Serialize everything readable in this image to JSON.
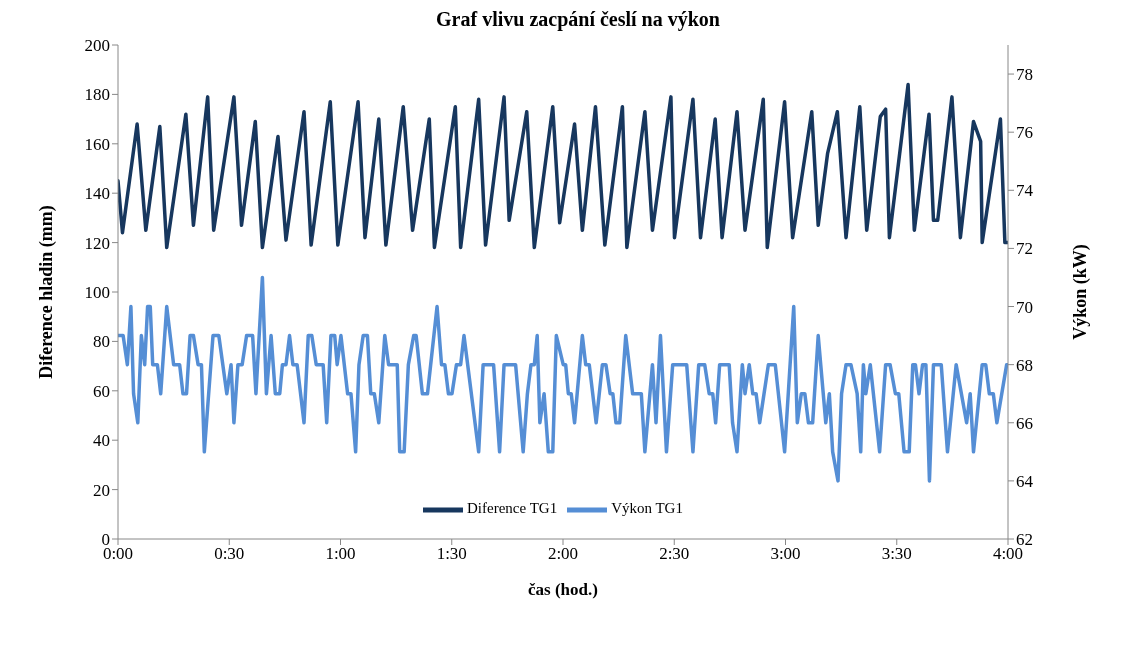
{
  "chart_data": {
    "type": "line",
    "title": "Graf vlivu zacpání česlí na výkon",
    "xlabel": "čas (hod.)",
    "ylabel": "Diference hladin (mm)",
    "y2label": "Výkon (kW)",
    "xlim": [
      0,
      4
    ],
    "xticks": [
      {
        "value": 0,
        "label": "0:00"
      },
      {
        "value": 0.5,
        "label": "0:30"
      },
      {
        "value": 1,
        "label": "1:00"
      },
      {
        "value": 1.5,
        "label": "1:30"
      },
      {
        "value": 2,
        "label": "2:00"
      },
      {
        "value": 2.5,
        "label": "2:30"
      },
      {
        "value": 3,
        "label": "3:00"
      },
      {
        "value": 3.5,
        "label": "3:30"
      },
      {
        "value": 4,
        "label": "4:00"
      }
    ],
    "ylim": [
      0,
      200
    ],
    "yticks": [
      0,
      20,
      40,
      60,
      80,
      100,
      120,
      140,
      160,
      180,
      200
    ],
    "y2lim": [
      62,
      79
    ],
    "y2ticks": [
      62,
      64,
      66,
      68,
      70,
      72,
      74,
      76,
      78
    ],
    "legend": "bottom",
    "series": [
      {
        "name": "Diference TG1",
        "color": "#17375e",
        "x": [
          0,
          0.02,
          0.086,
          0.125,
          0.188,
          0.219,
          0.305,
          0.339,
          0.403,
          0.43,
          0.521,
          0.555,
          0.617,
          0.649,
          0.719,
          0.755,
          0.836,
          0.868,
          0.954,
          0.988,
          1.079,
          1.11,
          1.172,
          1.204,
          1.282,
          1.324,
          1.399,
          1.422,
          1.516,
          1.54,
          1.621,
          1.652,
          1.735,
          1.758,
          1.837,
          1.871,
          1.954,
          1.985,
          2.052,
          2.087,
          2.146,
          2.188,
          2.267,
          2.287,
          2.368,
          2.402,
          2.485,
          2.501,
          2.584,
          2.618,
          2.684,
          2.715,
          2.782,
          2.818,
          2.9,
          2.918,
          2.996,
          3.032,
          3.118,
          3.147,
          3.189,
          3.233,
          3.272,
          3.334,
          3.365,
          3.426,
          3.45,
          3.467,
          3.551,
          3.579,
          3.645,
          3.665,
          3.684,
          3.748,
          3.786,
          3.845,
          3.877,
          3.884,
          3.966,
          3.986,
          4.0
        ],
        "values": [
          145,
          124,
          168,
          125,
          167,
          118,
          172,
          127,
          179,
          125,
          179,
          127,
          169,
          118,
          163,
          121,
          173,
          119,
          177,
          119,
          177,
          122,
          170,
          119,
          175,
          125,
          170,
          118,
          175,
          118,
          178,
          119,
          179,
          129,
          173,
          118,
          175,
          128,
          168,
          125,
          175,
          119,
          175,
          118,
          173,
          125,
          179,
          122,
          178,
          122,
          170,
          122,
          173,
          125,
          178,
          118,
          177,
          122,
          173,
          127,
          156,
          173,
          122,
          175,
          125,
          171,
          174,
          122,
          184,
          125,
          172,
          129,
          129,
          179,
          122,
          169,
          161,
          120,
          170,
          120,
          120
        ]
      },
      {
        "name": "Výkon TG1",
        "color": "#558ed5",
        "axis": "y2",
        "x": [
          0,
          0.023,
          0.042,
          0.058,
          0.07,
          0.089,
          0.105,
          0.12,
          0.133,
          0.145,
          0.156,
          0.177,
          0.192,
          0.219,
          0.25,
          0.277,
          0.292,
          0.308,
          0.324,
          0.339,
          0.36,
          0.375,
          0.388,
          0.427,
          0.453,
          0.489,
          0.508,
          0.521,
          0.539,
          0.558,
          0.578,
          0.605,
          0.62,
          0.649,
          0.667,
          0.688,
          0.707,
          0.727,
          0.739,
          0.755,
          0.771,
          0.786,
          0.805,
          0.836,
          0.855,
          0.871,
          0.891,
          0.922,
          0.938,
          0.957,
          0.974,
          0.985,
          1.002,
          1.032,
          1.047,
          1.068,
          1.083,
          1.102,
          1.121,
          1.136,
          1.152,
          1.172,
          1.199,
          1.216,
          1.255,
          1.266,
          1.286,
          1.305,
          1.329,
          1.34,
          1.368,
          1.391,
          1.434,
          1.454,
          1.469,
          1.485,
          1.501,
          1.521,
          1.54,
          1.555,
          1.621,
          1.641,
          1.688,
          1.715,
          1.735,
          1.787,
          1.821,
          1.84,
          1.856,
          1.871,
          1.884,
          1.896,
          1.915,
          1.934,
          1.954,
          1.97,
          2.001,
          2.012,
          2.024,
          2.037,
          2.052,
          2.087,
          2.102,
          2.118,
          2.149,
          2.177,
          2.193,
          2.212,
          2.224,
          2.238,
          2.255,
          2.282,
          2.313,
          2.352,
          2.368,
          2.402,
          2.418,
          2.438,
          2.465,
          2.493,
          2.506,
          2.556,
          2.584,
          2.61,
          2.637,
          2.657,
          2.673,
          2.686,
          2.704,
          2.747,
          2.762,
          2.782,
          2.806,
          2.818,
          2.837,
          2.853,
          2.868,
          2.884,
          2.923,
          2.954,
          2.996,
          3.037,
          3.053,
          3.071,
          3.087,
          3.103,
          3.122,
          3.147,
          3.181,
          3.197,
          3.212,
          3.236,
          3.252,
          3.272,
          3.294,
          3.322,
          3.338,
          3.35,
          3.361,
          3.381,
          3.423,
          3.45,
          3.47,
          3.494,
          3.509,
          3.533,
          3.556,
          3.572,
          3.584,
          3.6,
          3.616,
          3.631,
          3.647,
          3.665,
          3.7,
          3.728,
          3.767,
          3.814,
          3.83,
          3.845,
          3.884,
          3.9,
          3.916,
          3.934,
          3.95,
          3.994,
          4.0
        ],
        "values": [
          69,
          69,
          68,
          70,
          67,
          66,
          69,
          68,
          70,
          70,
          68,
          68,
          67,
          70,
          68,
          68,
          67,
          67,
          69,
          69,
          68,
          68,
          65,
          69,
          69,
          67,
          68,
          66,
          68,
          68,
          69,
          69,
          67,
          71,
          67,
          69,
          67,
          67,
          68,
          68,
          69,
          68,
          68,
          66,
          69,
          69,
          68,
          68,
          66,
          69,
          69,
          68,
          69,
          67,
          67,
          65,
          68,
          69,
          69,
          67,
          67,
          66,
          69,
          68,
          68,
          65,
          65,
          68,
          69,
          69,
          67,
          67,
          70,
          68,
          68,
          67,
          67,
          68,
          68,
          69,
          65,
          68,
          68,
          65,
          68,
          68,
          65,
          67,
          68,
          68,
          69,
          66,
          67,
          65,
          65,
          69,
          68,
          68,
          67,
          67,
          66,
          69,
          68,
          68,
          66,
          68,
          68,
          67,
          67,
          66,
          66,
          69,
          67,
          67,
          65,
          68,
          66,
          69,
          65,
          68,
          68,
          68,
          65,
          68,
          68,
          67,
          67,
          66,
          68,
          68,
          66,
          65,
          68,
          67,
          68,
          67,
          67,
          66,
          68,
          68,
          65,
          70,
          66,
          67,
          67,
          66,
          66,
          69,
          66,
          67,
          65,
          64,
          67,
          68,
          68,
          67,
          65,
          68,
          67,
          68,
          65,
          68,
          68,
          67,
          67,
          65,
          65,
          68,
          68,
          67,
          68,
          68,
          64,
          68,
          68,
          65,
          68,
          66,
          67,
          65,
          68,
          68,
          67,
          67,
          66,
          68,
          68
        ]
      }
    ]
  }
}
